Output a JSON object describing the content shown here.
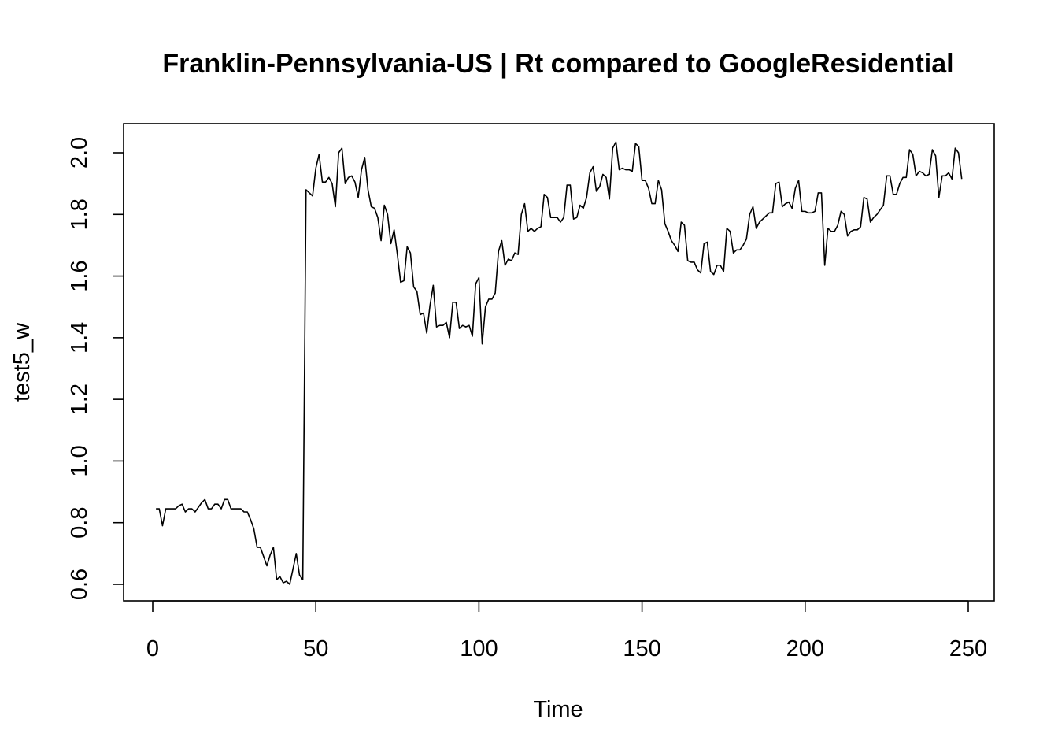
{
  "chart_data": {
    "type": "line",
    "title": "Franklin-Pennsylvania-US | Rt compared to GoogleResidential",
    "xlabel": "Time",
    "ylabel": "test5_w",
    "xlim": [
      1,
      248
    ],
    "ylim": [
      0.6,
      2.03
    ],
    "x_ticks": [
      0,
      50,
      100,
      150,
      200,
      250
    ],
    "y_ticks": [
      0.6,
      0.8,
      1.0,
      1.2,
      1.4,
      1.6,
      1.8,
      2.0
    ],
    "x_tick_labels": [
      "0",
      "50",
      "100",
      "150",
      "200",
      "250"
    ],
    "y_tick_labels": [
      "0.6",
      "0.8",
      "1.0",
      "1.2",
      "1.4",
      "1.6",
      "1.8",
      "2.0"
    ],
    "grid": false,
    "series": [
      {
        "x_start": 1,
        "values": [
          0.845,
          0.845,
          0.79,
          0.845,
          0.845,
          0.845,
          0.845,
          0.855,
          0.86,
          0.835,
          0.845,
          0.845,
          0.835,
          0.85,
          0.865,
          0.875,
          0.845,
          0.845,
          0.86,
          0.86,
          0.845,
          0.875,
          0.875,
          0.845,
          0.845,
          0.845,
          0.845,
          0.835,
          0.835,
          0.81,
          0.78,
          0.72,
          0.72,
          0.69,
          0.66,
          0.695,
          0.72,
          0.615,
          0.625,
          0.605,
          0.61,
          0.6,
          0.65,
          0.7,
          0.63,
          0.615,
          1.88,
          1.87,
          1.86,
          1.95,
          1.995,
          1.905,
          1.905,
          1.92,
          1.9,
          1.825,
          2.0,
          2.015,
          1.9,
          1.92,
          1.925,
          1.905,
          1.855,
          1.945,
          1.985,
          1.88,
          1.825,
          1.82,
          1.79,
          1.715,
          1.83,
          1.8,
          1.705,
          1.75,
          1.67,
          1.58,
          1.585,
          1.695,
          1.675,
          1.565,
          1.55,
          1.475,
          1.48,
          1.415,
          1.505,
          1.57,
          1.435,
          1.44,
          1.44,
          1.45,
          1.4,
          1.515,
          1.515,
          1.43,
          1.44,
          1.435,
          1.44,
          1.405,
          1.575,
          1.595,
          1.38,
          1.5,
          1.525,
          1.525,
          1.545,
          1.68,
          1.715,
          1.635,
          1.655,
          1.65,
          1.675,
          1.67,
          1.8,
          1.835,
          1.745,
          1.755,
          1.745,
          1.755,
          1.76,
          1.865,
          1.855,
          1.79,
          1.79,
          1.79,
          1.775,
          1.79,
          1.895,
          1.895,
          1.785,
          1.79,
          1.83,
          1.82,
          1.855,
          1.935,
          1.955,
          1.875,
          1.89,
          1.93,
          1.92,
          1.85,
          2.015,
          2.035,
          1.945,
          1.95,
          1.945,
          1.945,
          1.94,
          2.03,
          2.02,
          1.91,
          1.91,
          1.885,
          1.835,
          1.835,
          1.91,
          1.88,
          1.77,
          1.745,
          1.715,
          1.7,
          1.68,
          1.775,
          1.765,
          1.65,
          1.645,
          1.645,
          1.62,
          1.61,
          1.705,
          1.71,
          1.615,
          1.605,
          1.635,
          1.635,
          1.615,
          1.755,
          1.745,
          1.675,
          1.685,
          1.685,
          1.7,
          1.72,
          1.8,
          1.825,
          1.755,
          1.775,
          1.785,
          1.795,
          1.805,
          1.805,
          1.9,
          1.905,
          1.825,
          1.835,
          1.84,
          1.82,
          1.885,
          1.91,
          1.81,
          1.81,
          1.805,
          1.805,
          1.81,
          1.87,
          1.87,
          1.635,
          1.755,
          1.745,
          1.745,
          1.765,
          1.81,
          1.8,
          1.73,
          1.745,
          1.75,
          1.75,
          1.76,
          1.855,
          1.85,
          1.775,
          1.79,
          1.8,
          1.815,
          1.83,
          1.925,
          1.925,
          1.865,
          1.865,
          1.9,
          1.92,
          1.92,
          2.01,
          1.995,
          1.925,
          1.94,
          1.935,
          1.925,
          1.93,
          2.01,
          1.99,
          1.855,
          1.925,
          1.925,
          1.935,
          1.915,
          2.015,
          2.0,
          1.915
        ]
      }
    ]
  }
}
